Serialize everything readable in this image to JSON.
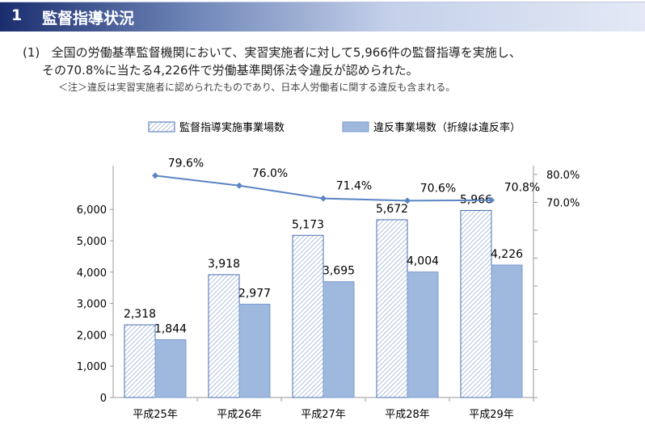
{
  "header": {
    "number": "1",
    "title": "監督指導状況"
  },
  "text": {
    "item_no": "(1)",
    "line1": "全国の労働基準監督機関において、実習実施者に対して5,966件の監督指導を実施し、",
    "line2": "その70.8%に当たる4,226件で労働基準関係法令違反が認められた。",
    "note": "＜注＞違反は実習実施者に認められたものであり、日本人労働者に関する違反も含まれる。"
  },
  "colors": {
    "hatch": "#4a6fb0",
    "solid": "#9fb8de",
    "line": "#5b84c4"
  },
  "chart_data": {
    "type": "bar",
    "categories": [
      "平成25年",
      "平成26年",
      "平成27年",
      "平成28年",
      "平成29年"
    ],
    "series": [
      {
        "name": "監督指導実施事業場数",
        "values": [
          2318,
          3918,
          5173,
          5672,
          5966
        ],
        "labels": [
          "2,318",
          "3,918",
          "5,173",
          "5,672",
          "5,966"
        ]
      },
      {
        "name": "違反事業場数（折線は違反率）",
        "values": [
          1844,
          2977,
          3695,
          4004,
          4226
        ],
        "labels": [
          "1,844",
          "2,977",
          "3,695",
          "4,004",
          "4,226"
        ]
      },
      {
        "name": "違反率",
        "type": "line",
        "axis": "right",
        "values": [
          79.6,
          76.0,
          71.4,
          70.6,
          70.8
        ],
        "labels": [
          "79.6%",
          "76.0%",
          "71.4%",
          "70.6%",
          "70.8%"
        ]
      }
    ],
    "y_ticks": [
      "0",
      "1,000",
      "2,000",
      "3,000",
      "4,000",
      "5,000",
      "6,000"
    ],
    "ylim": [
      0,
      7000
    ],
    "y2_ticks": [
      "70.0%",
      "80.0%"
    ],
    "y2lim": [
      0,
      83
    ],
    "legend": "top"
  }
}
